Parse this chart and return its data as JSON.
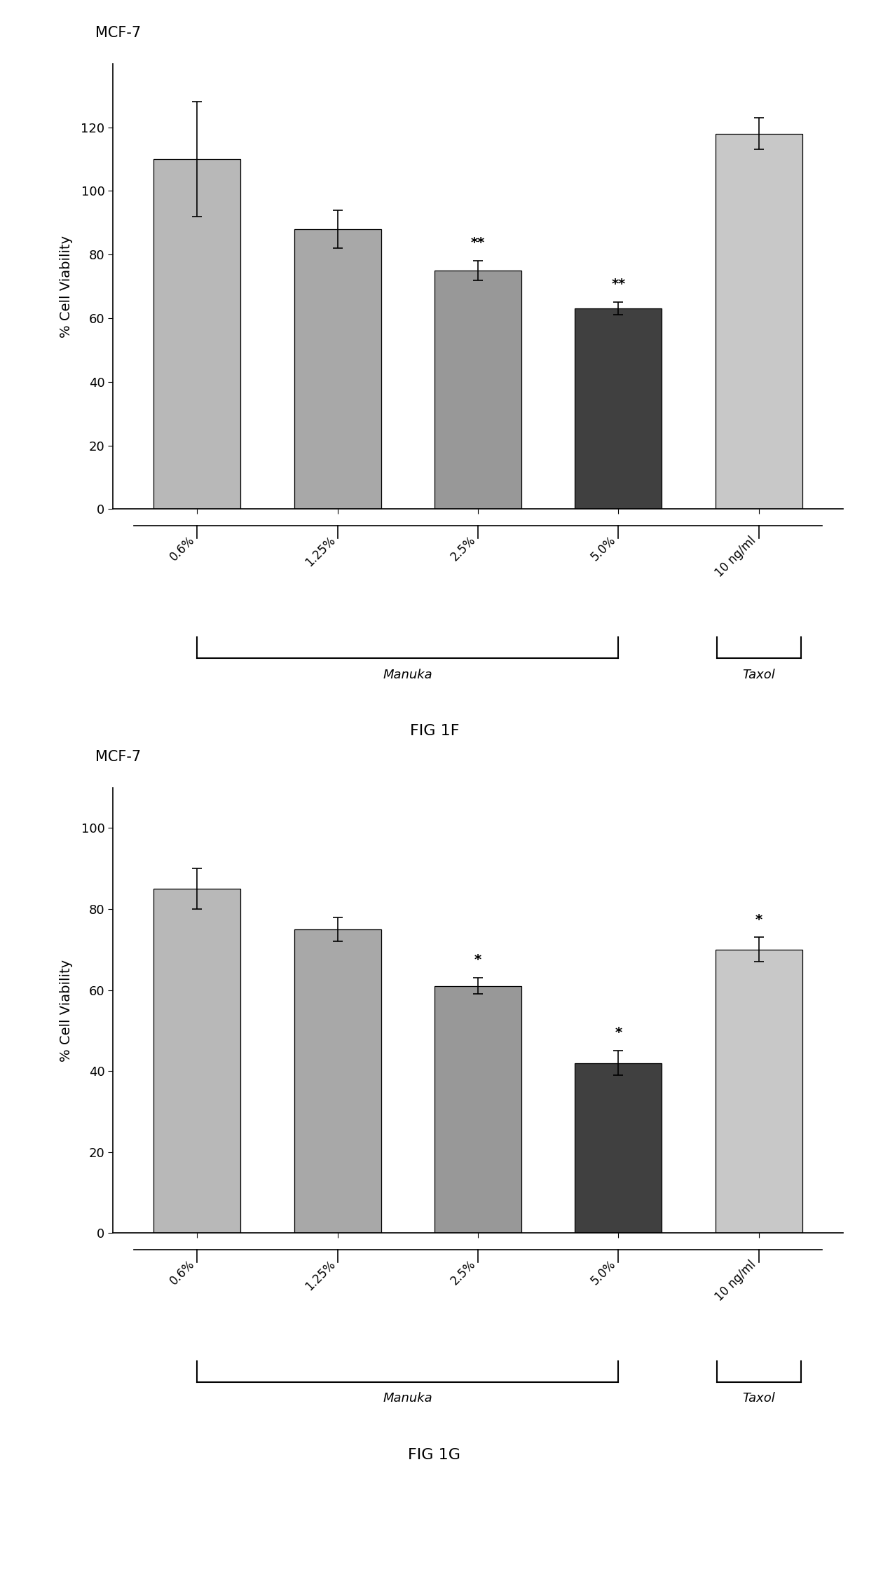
{
  "fig1f": {
    "title": "MCF-7",
    "ylabel": "% Cell Viability",
    "fig_label": "FIG 1F",
    "categories": [
      "0.6%",
      "1.25%",
      "2.5%",
      "5.0%",
      "10 ng/ml"
    ],
    "values": [
      110,
      88,
      75,
      63,
      118
    ],
    "errors": [
      18,
      6,
      3,
      2,
      5
    ],
    "bar_colors": [
      "#b8b8b8",
      "#a8a8a8",
      "#989898",
      "#404040",
      "#c8c8c8"
    ],
    "significance": [
      "",
      "",
      "**",
      "**",
      ""
    ],
    "ylim": [
      0,
      140
    ],
    "yticks": [
      0,
      20,
      40,
      60,
      80,
      100,
      120
    ],
    "group_labels": [
      "Manuka",
      "Taxol"
    ]
  },
  "fig1g": {
    "title": "MCF-7",
    "ylabel": "% Cell Viability",
    "fig_label": "FIG 1G",
    "categories": [
      "0.6%",
      "1.25%",
      "2.5%",
      "5.0%",
      "10 ng/ml"
    ],
    "values": [
      85,
      75,
      61,
      42,
      70
    ],
    "errors": [
      5,
      3,
      2,
      3,
      3
    ],
    "bar_colors": [
      "#b8b8b8",
      "#a8a8a8",
      "#989898",
      "#404040",
      "#c8c8c8"
    ],
    "significance": [
      "",
      "",
      "*",
      "*",
      "*"
    ],
    "ylim": [
      0,
      110
    ],
    "yticks": [
      0,
      20,
      40,
      60,
      80,
      100
    ],
    "group_labels": [
      "Manuka",
      "Taxol"
    ]
  }
}
